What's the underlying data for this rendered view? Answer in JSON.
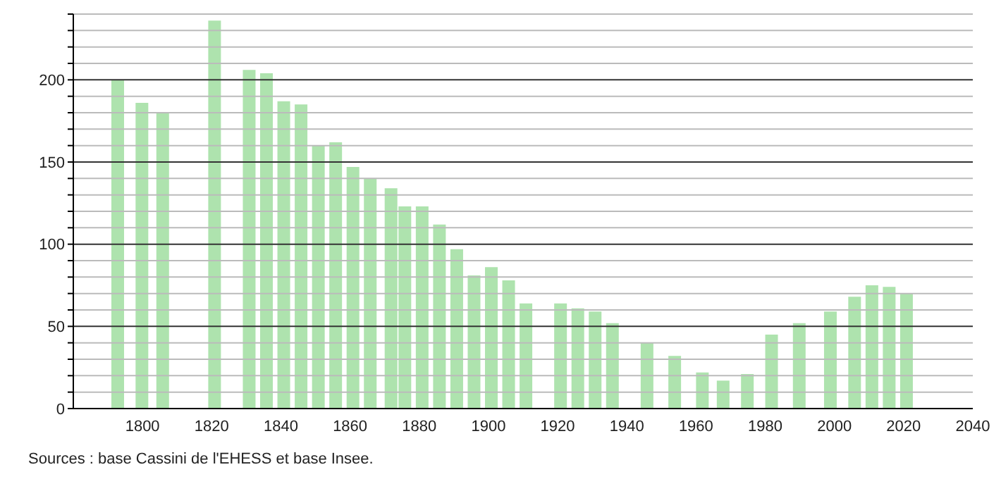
{
  "chart_data": {
    "type": "bar",
    "x": [
      1793,
      1800,
      1806,
      1821,
      1831,
      1836,
      1841,
      1846,
      1851,
      1856,
      1861,
      1866,
      1872,
      1876,
      1881,
      1886,
      1891,
      1896,
      1901,
      1906,
      1911,
      1921,
      1926,
      1931,
      1936,
      1946,
      1954,
      1962,
      1968,
      1975,
      1982,
      1990,
      1999,
      2006,
      2011,
      2016,
      2021
    ],
    "values": [
      200,
      186,
      180,
      236,
      206,
      204,
      187,
      185,
      160,
      162,
      147,
      140,
      134,
      123,
      123,
      112,
      97,
      81,
      86,
      78,
      64,
      64,
      61,
      59,
      52,
      40,
      32,
      22,
      17,
      21,
      45,
      52,
      59,
      68,
      75,
      74,
      70
    ],
    "color": "#aee3ae",
    "xlim": [
      1780,
      2040
    ],
    "xticks": [
      1800,
      1820,
      1840,
      1860,
      1880,
      1900,
      1920,
      1940,
      1960,
      1980,
      2000,
      2020,
      2040
    ],
    "ylim": [
      0,
      240
    ],
    "yticks": [
      0,
      {
        "value": 10,
        "label": null
      },
      {
        "value": 20,
        "label": null
      },
      {
        "value": 30,
        "label": null
      },
      {
        "value": 40,
        "label": null
      },
      50,
      {
        "value": 60,
        "label": null
      },
      {
        "value": 70,
        "label": null
      },
      {
        "value": 80,
        "label": null
      },
      {
        "value": 90,
        "label": null
      },
      100,
      {
        "value": 110,
        "label": null
      },
      {
        "value": 120,
        "label": null
      },
      {
        "value": 130,
        "label": null
      },
      {
        "value": 140,
        "label": null
      },
      150,
      {
        "value": 160,
        "label": null
      },
      {
        "value": 170,
        "label": null
      },
      {
        "value": 180,
        "label": null
      },
      {
        "value": 190,
        "label": null
      },
      200,
      {
        "value": 210,
        "label": null
      },
      {
        "value": 220,
        "label": null
      },
      {
        "value": 230,
        "label": null
      },
      {
        "value": 240,
        "label": null
      }
    ],
    "grid": "y",
    "annotations": [
      "Sources : base Cassini de l'EHESS et base Insee."
    ]
  }
}
